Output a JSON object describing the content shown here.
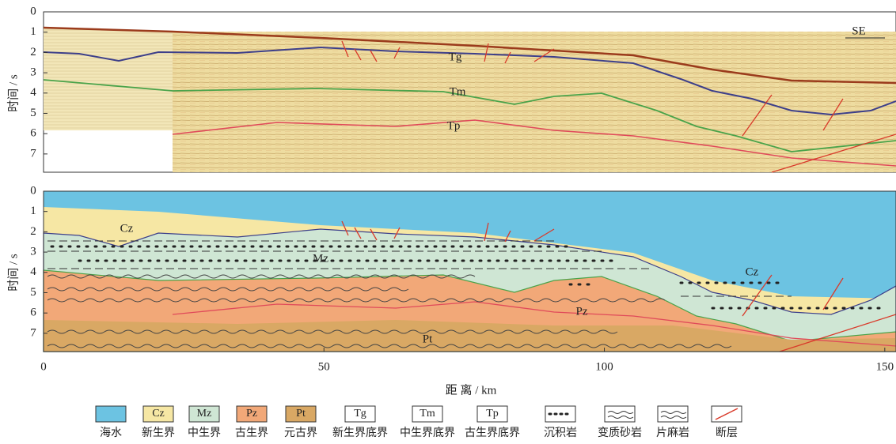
{
  "chart_data": {
    "type": "section",
    "y_axis_label": "时间 / s",
    "x_axis_label": "距 离 / km",
    "xlim": [
      0,
      152
    ],
    "xticks": [
      0,
      50,
      100,
      150
    ],
    "ylim": [
      0,
      7.9
    ],
    "yticks": [
      0,
      1,
      2,
      3,
      4,
      5,
      6,
      7
    ],
    "direction": "SE",
    "horizon_labels": [
      "Tg",
      "Tm",
      "Tp"
    ],
    "unit_labels": [
      "Cz",
      "Mz",
      "Cz",
      "Pz",
      "Pt"
    ],
    "legend": [
      {
        "label": "海水"
      },
      {
        "swatch": "Cz",
        "label": "新生界",
        "color": "#f6e7a4"
      },
      {
        "swatch": "Mz",
        "label": "中生界",
        "color": "#cfe6d4"
      },
      {
        "swatch": "Pz",
        "label": "古生界",
        "color": "#f2a878"
      },
      {
        "swatch": "Pt",
        "label": "元古界",
        "color": "#d9a864"
      },
      {
        "swatch": "Tg",
        "label": "新生界底界"
      },
      {
        "swatch": "Tm",
        "label": "中生界底界"
      },
      {
        "swatch": "Tp",
        "label": "古生界底界"
      },
      {
        "label": "沉积岩"
      },
      {
        "label": "变质砂岩"
      },
      {
        "label": "片麻岩"
      },
      {
        "label": "断层"
      }
    ]
  }
}
